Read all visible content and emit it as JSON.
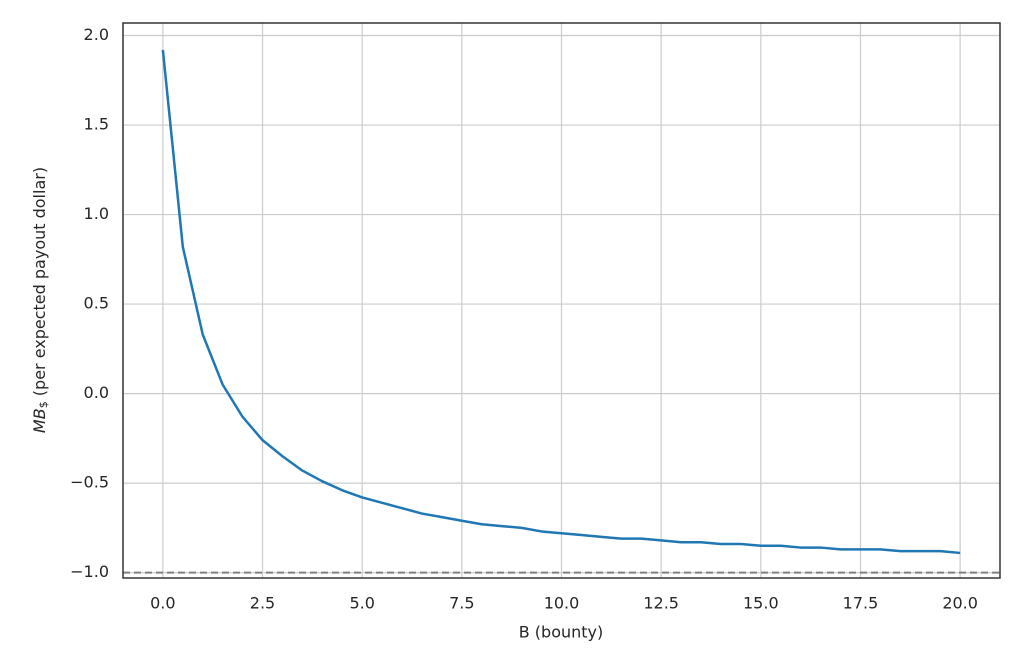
{
  "chart_data": {
    "type": "line",
    "xlabel": "B (bounty)",
    "ylabel": {
      "text": "MB",
      "subscript": "$",
      "suffix": " (per expected payout dollar)"
    },
    "x": [
      0,
      0.5,
      1,
      1.5,
      2,
      2.5,
      3,
      3.5,
      4,
      4.5,
      5,
      5.5,
      6,
      6.5,
      7,
      7.5,
      8,
      8.5,
      9,
      9.5,
      10,
      10.5,
      11,
      11.5,
      12,
      12.5,
      13,
      13.5,
      14,
      14.5,
      15,
      15.5,
      16,
      16.5,
      17,
      17.5,
      18,
      18.5,
      19,
      19.5,
      20
    ],
    "series": [
      {
        "color": "#1f77b4",
        "values": [
          1.92,
          0.82,
          0.33,
          0.05,
          -0.13,
          -0.26,
          -0.35,
          -0.43,
          -0.49,
          -0.54,
          -0.58,
          -0.61,
          -0.64,
          -0.67,
          -0.69,
          -0.71,
          -0.73,
          -0.74,
          -0.75,
          -0.77,
          -0.78,
          -0.79,
          -0.8,
          -0.81,
          -0.81,
          -0.82,
          -0.83,
          -0.83,
          -0.84,
          -0.84,
          -0.85,
          -0.85,
          -0.86,
          -0.86,
          -0.87,
          -0.87,
          -0.87,
          -0.88,
          -0.88,
          -0.88,
          -0.89
        ]
      }
    ],
    "hline": {
      "y": -1,
      "color": "#808080",
      "style": "dashed"
    },
    "xlim": [
      -1,
      21
    ],
    "ylim": [
      -1.03,
      2.07
    ],
    "xticks": [
      {
        "value": 0,
        "label": "0.0"
      },
      {
        "value": 2.5,
        "label": "2.5"
      },
      {
        "value": 5,
        "label": "5.0"
      },
      {
        "value": 7.5,
        "label": "7.5"
      },
      {
        "value": 10,
        "label": "10.0"
      },
      {
        "value": 12.5,
        "label": "12.5"
      },
      {
        "value": 15,
        "label": "15.0"
      },
      {
        "value": 17.5,
        "label": "17.5"
      },
      {
        "value": 20,
        "label": "20.0"
      }
    ],
    "yticks": [
      {
        "value": -1,
        "label": "−1.0"
      },
      {
        "value": -0.5,
        "label": "−0.5"
      },
      {
        "value": 0,
        "label": "0.0"
      },
      {
        "value": 0.5,
        "label": "0.5"
      },
      {
        "value": 1,
        "label": "1.0"
      },
      {
        "value": 1.5,
        "label": "1.5"
      },
      {
        "value": 2,
        "label": "2.0"
      }
    ],
    "grid": true
  }
}
